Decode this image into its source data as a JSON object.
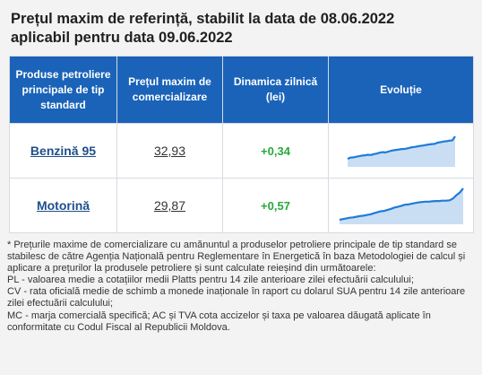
{
  "title": {
    "line1": "Prețul maxim de referință, stabilit la data de 08.06.2022",
    "line2": "aplicabil pentru data 09.06.2022"
  },
  "table": {
    "headers": [
      "Produse petroliere principale de tip standard",
      "Prețul maxim de comercializare",
      "Dinamica zilnică (lei)",
      "Evoluție"
    ],
    "rows": [
      {
        "product": "Benzină 95",
        "price": "32,93",
        "change": "+0,34",
        "trend": [
          0.22,
          0.26,
          0.27,
          0.29,
          0.31,
          0.33,
          0.34,
          0.36,
          0.35,
          0.38,
          0.4,
          0.43,
          0.45,
          0.44,
          0.47,
          0.5,
          0.52,
          0.53,
          0.55,
          0.56,
          0.57,
          0.59,
          0.62,
          0.63,
          0.65,
          0.67,
          0.68,
          0.7,
          0.72,
          0.73,
          0.74,
          0.78,
          0.8,
          0.82,
          0.83,
          0.85,
          0.86,
          1.0
        ]
      },
      {
        "product": "Motorină",
        "price": "29,87",
        "change": "+0,57",
        "trend": [
          0.08,
          0.1,
          0.12,
          0.14,
          0.15,
          0.17,
          0.19,
          0.2,
          0.22,
          0.24,
          0.27,
          0.3,
          0.33,
          0.34,
          0.37,
          0.4,
          0.44,
          0.46,
          0.49,
          0.52,
          0.53,
          0.55,
          0.57,
          0.59,
          0.6,
          0.61,
          0.61,
          0.62,
          0.63,
          0.63,
          0.64,
          0.64,
          0.65,
          0.7,
          0.8,
          0.88,
          1.0
        ]
      }
    ]
  },
  "colors": {
    "header_bg": "#1a63b8",
    "link": "#1f4f8c",
    "positive": "#26a93c",
    "trend_line": "#1f7bd8",
    "trend_fill": "#c9def3"
  },
  "notes": [
    "* Prețurile maxime de comercializare cu amănuntul a produselor petroliere principale de tip standard se stabilesc de către Agenția Națională pentru Reglementare în Energetică în baza Metodologiei de calcul și aplicare a prețurilor la produsele petroliere și sunt calculate reieșind din următoarele:",
    "PL - valoarea medie a cotațiilor medii Platts pentru 14 zile anterioare zilei efectuării calculului;",
    "CV - rata oficială medie de schimb a monede inaționale în raport cu dolarul SUA pentru 14 zile anterioare zilei efectuării calculului;",
    "MC - marja comercială specifică; AC și TVA cota accizelor și taxa pe valoarea dăugată aplicate în conformitate cu Codul Fiscal al Republicii Moldova."
  ]
}
